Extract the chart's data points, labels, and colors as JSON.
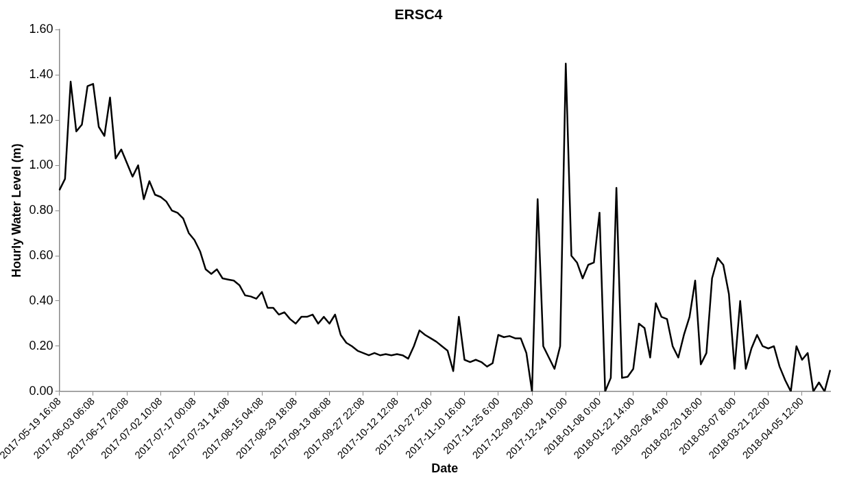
{
  "chart_data": {
    "type": "line",
    "title": "ERSC4",
    "xlabel": "Date",
    "ylabel": "Hourly Water Level (m)",
    "categories": [
      "2017-05-19 16:08",
      null,
      null,
      null,
      null,
      null,
      "2017-06-03 06:08",
      null,
      null,
      null,
      null,
      null,
      "2017-06-17 20:08",
      null,
      null,
      null,
      null,
      null,
      "2017-07-02 10:08",
      null,
      null,
      null,
      null,
      null,
      "2017-07-17 00:08",
      null,
      null,
      null,
      null,
      null,
      "2017-07-31 14:08",
      null,
      null,
      null,
      null,
      null,
      "2017-08-15 04:08",
      null,
      null,
      null,
      null,
      null,
      "2017-08-29 18:08",
      null,
      null,
      null,
      null,
      null,
      "2017-09-13 08:08",
      null,
      null,
      null,
      null,
      null,
      "2017-09-27 22:08",
      null,
      null,
      null,
      null,
      null,
      "2017-10-12 12:08",
      null,
      null,
      null,
      null,
      null,
      "2017-10-27 2:00",
      null,
      null,
      null,
      null,
      null,
      "2017-11-10 16:00",
      null,
      null,
      null,
      null,
      null,
      "2017-11-25 6:00",
      null,
      null,
      null,
      null,
      null,
      "2017-12-09 20:00",
      null,
      null,
      null,
      null,
      null,
      "2017-12-24 10:00",
      null,
      null,
      null,
      null,
      null,
      "2018-01-08 0:00",
      null,
      null,
      null,
      null,
      null,
      "2018-01-22 14:00",
      null,
      null,
      null,
      null,
      null,
      "2018-02-06 4:00",
      null,
      null,
      null,
      null,
      null,
      "2018-02-20 18:00",
      null,
      null,
      null,
      null,
      null,
      "2018-03-07 8:00",
      null,
      null,
      null,
      null,
      null,
      "2018-03-21 22:00",
      null,
      null,
      null,
      null,
      null,
      "2018-04-05 12:00",
      null,
      null,
      null,
      null,
      null
    ],
    "series": [
      {
        "color": "#000000",
        "values": [
          0.89,
          0.94,
          1.37,
          1.15,
          1.18,
          1.35,
          1.36,
          1.17,
          1.13,
          1.3,
          1.03,
          1.07,
          1.01,
          0.95,
          1.0,
          0.85,
          0.93,
          0.87,
          0.86,
          0.84,
          0.8,
          0.79,
          0.765,
          0.7,
          0.67,
          0.62,
          0.54,
          0.52,
          0.54,
          0.5,
          0.495,
          0.49,
          0.47,
          0.425,
          0.42,
          0.41,
          0.44,
          0.37,
          0.37,
          0.34,
          0.35,
          0.32,
          0.3,
          0.33,
          0.33,
          0.34,
          0.3,
          0.33,
          0.3,
          0.34,
          0.25,
          0.215,
          0.2,
          0.18,
          0.17,
          0.16,
          0.17,
          0.16,
          0.165,
          0.16,
          0.165,
          0.16,
          0.145,
          0.2,
          0.27,
          0.25,
          0.235,
          0.22,
          0.2,
          0.18,
          0.09,
          0.33,
          0.14,
          0.13,
          0.14,
          0.13,
          0.11,
          0.125,
          0.25,
          0.24,
          0.245,
          0.235,
          0.235,
          0.17,
          0.0,
          0.85,
          0.2,
          0.15,
          0.1,
          0.2,
          1.45,
          0.6,
          0.57,
          0.5,
          0.56,
          0.57,
          0.79,
          0.0,
          0.06,
          0.9,
          0.06,
          0.065,
          0.1,
          0.3,
          0.28,
          0.15,
          0.39,
          0.33,
          0.32,
          0.2,
          0.15,
          0.25,
          0.33,
          0.49,
          0.12,
          0.17,
          0.5,
          0.59,
          0.56,
          0.43,
          0.1,
          0.4,
          0.1,
          0.19,
          0.25,
          0.2,
          0.19,
          0.2,
          0.11,
          0.05,
          0.0,
          0.2,
          0.14,
          0.17,
          0.0,
          0.04,
          0.0,
          0.095
        ]
      }
    ],
    "ylim": [
      0,
      1.6
    ],
    "yticks": [
      {
        "value": 0,
        "label": "0.00"
      },
      {
        "value": 0.2,
        "label": "0.20"
      },
      {
        "value": 0.4,
        "label": "0.40"
      },
      {
        "value": 0.6,
        "label": "0.60"
      },
      {
        "value": 0.8,
        "label": "0.80"
      },
      {
        "value": 1.0,
        "label": "1.00"
      },
      {
        "value": 1.2,
        "label": "1.20"
      },
      {
        "value": 1.4,
        "label": "1.40"
      },
      {
        "value": 1.6,
        "label": "1.60"
      }
    ],
    "marker": "none",
    "grid": false,
    "legend": false
  }
}
